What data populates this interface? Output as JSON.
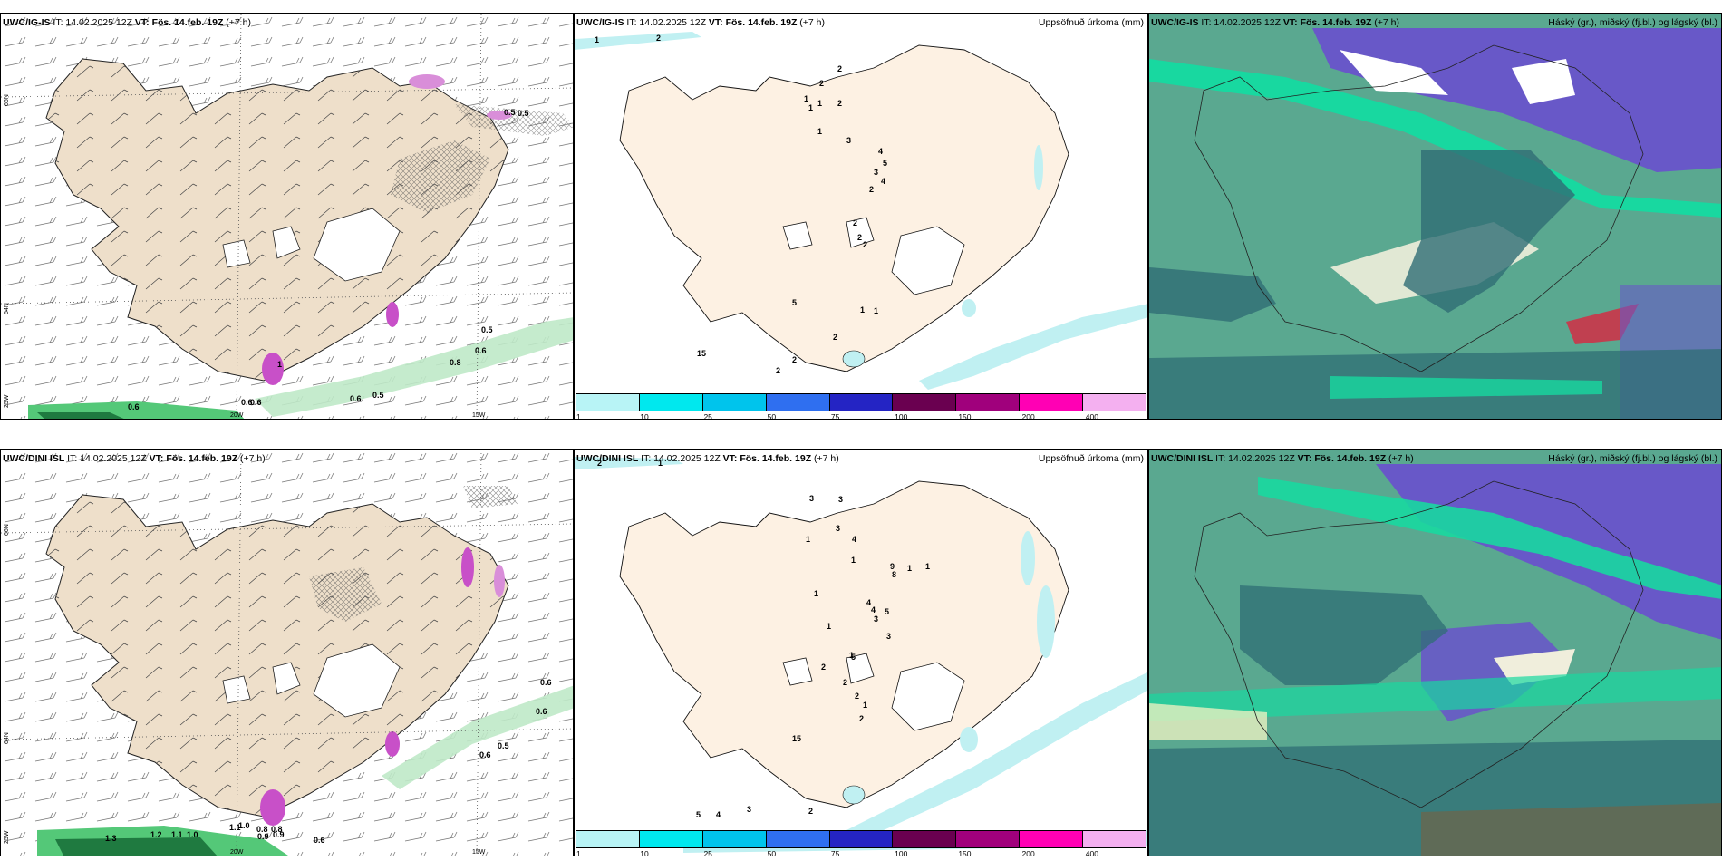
{
  "panels": {
    "p1": {
      "model": "UWC/IG-IS",
      "it": "14.02.2025 12Z",
      "vt": "Fös. 14.feb. 19Z",
      "lead": "(+7 h)",
      "right": ""
    },
    "p2": {
      "model": "UWC/IG-IS",
      "it": "14.02.2025 12Z",
      "vt": "Fös. 14.feb. 19Z",
      "lead": "(+7 h)",
      "right": "Uppsöfnuð úrkoma (mm)"
    },
    "p3": {
      "model": "UWC/IG-IS",
      "it": "14.02.2025 12Z",
      "vt": "Fös. 14.feb. 19Z",
      "lead": "(+7 h)",
      "right": "Háský (gr.), miðský (fj.bl.) og lágský (bl.)"
    },
    "p4": {
      "model": "UWC/DINI ISL",
      "it": "14.02.2025 12Z",
      "vt": "Fös. 14.feb. 19Z",
      "lead": "(+7 h)",
      "right": ""
    },
    "p5": {
      "model": "UWC/DINI ISL",
      "it": "14.02.2025 12Z",
      "vt": "Fös. 14.feb. 19Z",
      "lead": "(+7 h)",
      "right": "Uppsöfnuð úrkoma (mm)"
    },
    "p6": {
      "model": "UWC/DINI ISL",
      "it": "14.02.2025 12Z",
      "vt": "Fös. 14.feb. 19Z",
      "lead": "(+7 h)",
      "right": "Háský (gr.), miðský (fj.bl.) og lágský (bl.)"
    }
  },
  "axis": {
    "lat66": "66N",
    "lat64": "64N",
    "lon25": "25W",
    "lon20": "20W",
    "lon15": "15W"
  },
  "colorbar": {
    "labels": [
      "1",
      "10",
      "25",
      "50",
      "75",
      "100",
      "150",
      "200",
      "400"
    ],
    "colors": [
      "#b8f4f6",
      "#00e8ee",
      "#00c4ec",
      "#2f6ff0",
      "#2424c4",
      "#6a0050",
      "#a0007c",
      "#ff00b4",
      "#f4b0f0"
    ]
  },
  "labels_p1": [
    "0.5",
    "0.5",
    "0.6",
    "0.8",
    "0.6",
    "0.6",
    "0.5",
    "0.6",
    "0.6",
    "0.5",
    "1"
  ],
  "labels_p2": [
    "1",
    "2",
    "2",
    "2",
    "1",
    "1",
    "1",
    "2",
    "1",
    "3",
    "4",
    "5",
    "3",
    "4",
    "2",
    "2",
    "2",
    "2",
    "5",
    "1",
    "1",
    "2",
    "2",
    "2",
    "15"
  ],
  "labels_p4": [
    "0.6",
    "0.5",
    "0.6",
    "0.6",
    "1.3",
    "1.2",
    "1.1",
    "1.0",
    "1.1",
    "1.0",
    "0.8",
    "0.9",
    "0.8",
    "0.9",
    "0.6"
  ],
  "labels_p5": [
    "2",
    "1",
    "3",
    "3",
    "3",
    "1",
    "4",
    "1",
    "9",
    "8",
    "1",
    "1",
    "1",
    "4",
    "4",
    "5",
    "3",
    "1",
    "3",
    "1",
    "5",
    "2",
    "2",
    "2",
    "1",
    "2",
    "15",
    "5",
    "4",
    "3",
    "2"
  ],
  "colors": {
    "land": "#f6ead8",
    "land_dim": "#e9d7c4",
    "precip_light": "#c0f0f2",
    "green": "#54c878",
    "magenta": "#c850c8",
    "cloud_low": "#5aa890",
    "cloud_mid": "#2f6d74",
    "cloud_high": "#6858c8",
    "cloud_bright": "#18d8a0"
  }
}
